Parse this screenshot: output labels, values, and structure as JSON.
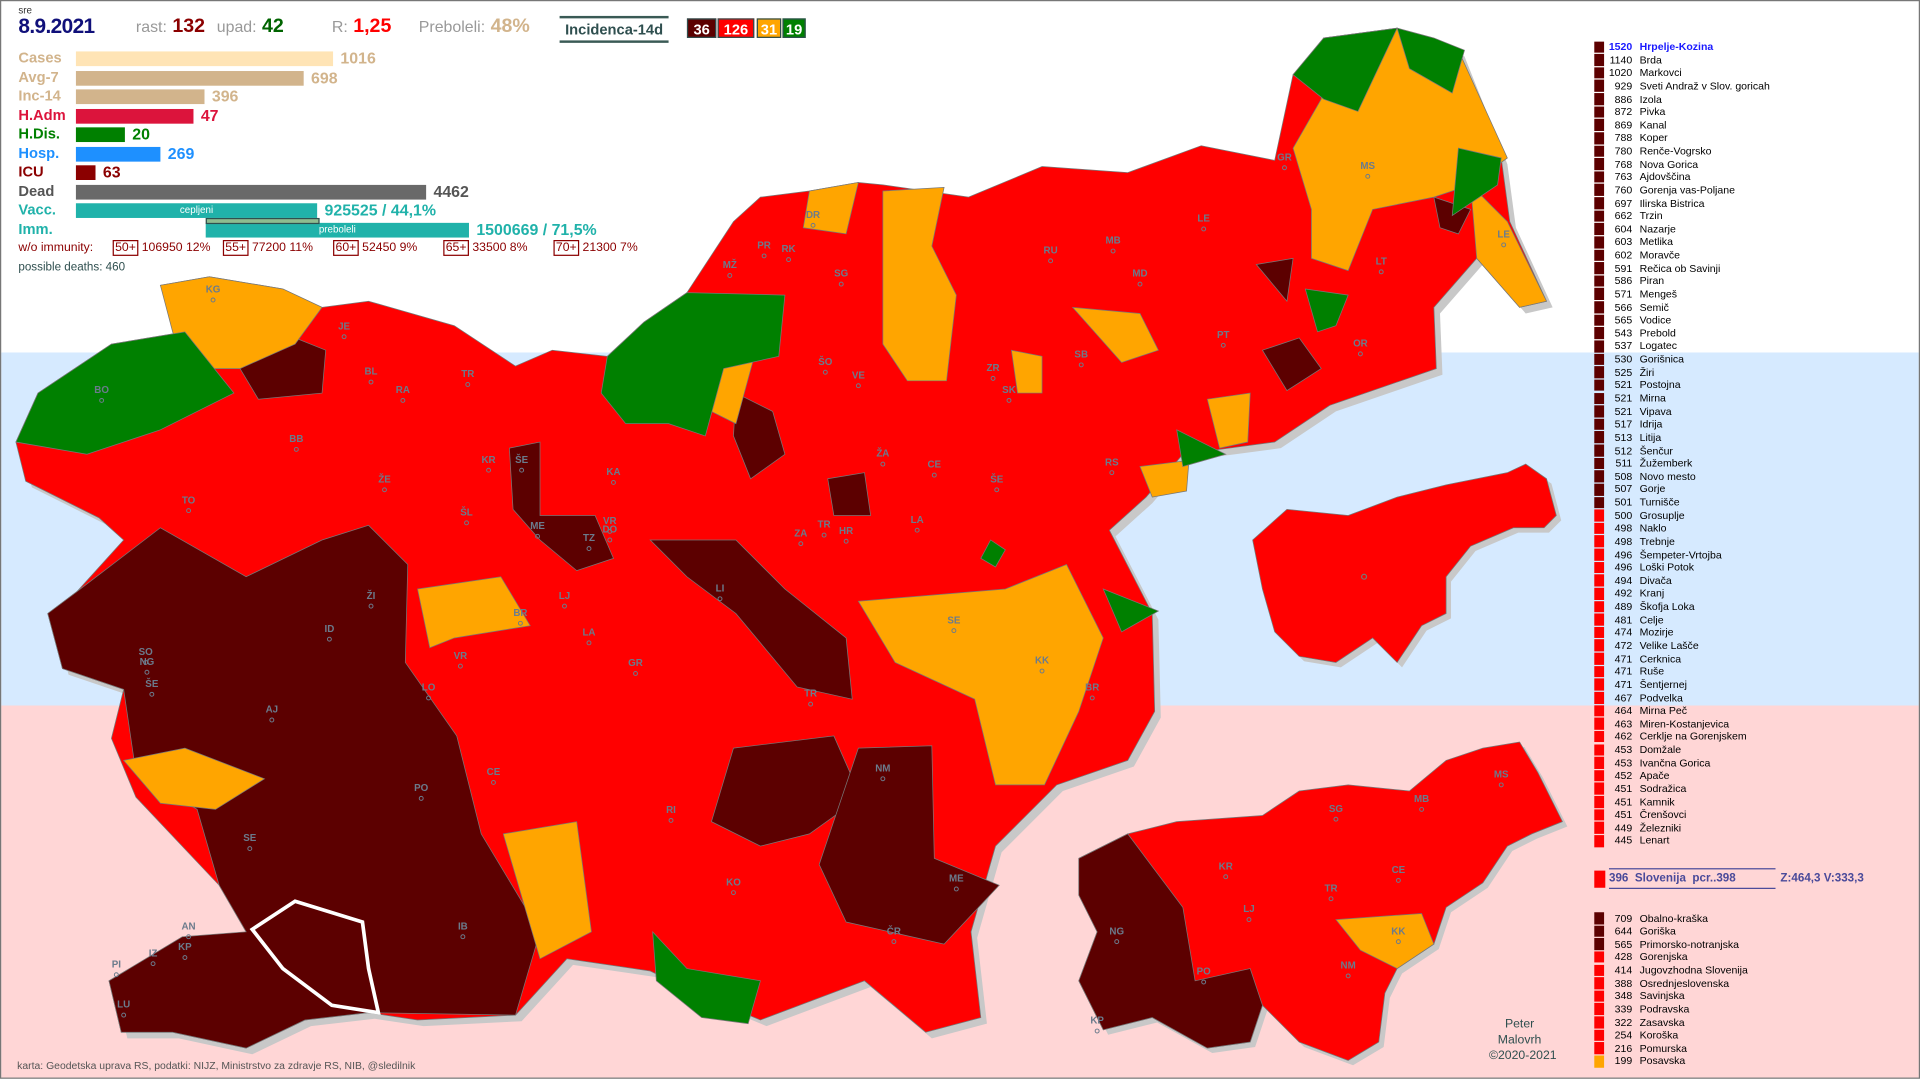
{
  "header": {
    "day": "sre",
    "date": "8.9.2021",
    "rast_label": "rast:",
    "rast": "132",
    "upad_label": "upad:",
    "upad": "42",
    "r_label": "R:",
    "r": "1,25",
    "preboleli_label": "Preboleli:",
    "preboleli": "48%",
    "map_mode": "Incidenca-14d",
    "counts": [
      {
        "value": "36",
        "color": "#5c0000"
      },
      {
        "value": "126",
        "color": "#ff0000"
      },
      {
        "value": "31",
        "color": "#ffa500"
      },
      {
        "value": "19",
        "color": "#008000"
      }
    ]
  },
  "stats": [
    {
      "label": "Cases",
      "value": "1016",
      "color": "#ffe4b5",
      "text_color": "#d2b48c"
    },
    {
      "label": "Avg-7",
      "value": "698",
      "color": "#d2b48c",
      "text_color": "#d2b48c"
    },
    {
      "label": "Inc-14",
      "value": "396",
      "color": "#d2b48c",
      "text_color": "#d2b48c"
    },
    {
      "label": "H.Adm",
      "value": "47",
      "color": "#dc143c",
      "text_color": "#dc143c"
    },
    {
      "label": "H.Dis.",
      "value": "20",
      "color": "#008000",
      "text_color": "#008000"
    },
    {
      "label": "Hosp.",
      "value": "269",
      "color": "#1e90ff",
      "text_color": "#1e90ff"
    },
    {
      "label": "ICU",
      "value": "63",
      "color": "#8b0000",
      "text_color": "#8b0000"
    },
    {
      "label": "Dead",
      "value": "4462",
      "color": "#696969",
      "text_color": "#555555"
    },
    {
      "label": "Vacc.",
      "value": "925525 / 44,1%",
      "color": "#20b2aa",
      "text_color": "#20b2aa",
      "bar_text": "cepljeni"
    },
    {
      "label": "Imm.",
      "value": "1500669 / 71,5%",
      "color": "#20b2aa",
      "text_color": "#20b2aa",
      "bar_text": "preboleli"
    }
  ],
  "immunity": {
    "label": "w/o immunity:",
    "groups": [
      {
        "age": "50+",
        "text": "106950 12%"
      },
      {
        "age": "55+",
        "text": "77200 11%"
      },
      {
        "age": "60+",
        "text": "52450 9%"
      },
      {
        "age": "65+",
        "text": "33500 8%"
      },
      {
        "age": "70+",
        "text": "21300 7%"
      }
    ]
  },
  "possible_deaths": "possible deaths: 460",
  "colors": {
    "very_high": "#5c0000",
    "high": "#ff0000",
    "medium": "#ffa500",
    "low": "#008000",
    "highlight": "#1a1aff"
  },
  "municipalities": [
    [
      "1520",
      "Hrpelje-Kozina",
      "d"
    ],
    [
      "1140",
      "Brda",
      "d"
    ],
    [
      "1020",
      "Markovci",
      "d"
    ],
    [
      "929",
      "Sveti Andraž v Slov. goricah",
      "d"
    ],
    [
      "886",
      "Izola",
      "d"
    ],
    [
      "872",
      "Pivka",
      "d"
    ],
    [
      "869",
      "Kanal",
      "d"
    ],
    [
      "788",
      "Koper",
      "d"
    ],
    [
      "780",
      "Renče-Vogrsko",
      "d"
    ],
    [
      "768",
      "Nova Gorica",
      "d"
    ],
    [
      "763",
      "Ajdovščina",
      "d"
    ],
    [
      "760",
      "Gorenja vas-Poljane",
      "d"
    ],
    [
      "697",
      "Ilirska Bistrica",
      "d"
    ],
    [
      "662",
      "Trzin",
      "d"
    ],
    [
      "604",
      "Nazarje",
      "d"
    ],
    [
      "603",
      "Metlika",
      "d"
    ],
    [
      "602",
      "Moravče",
      "d"
    ],
    [
      "591",
      "Rečica ob Savinji",
      "d"
    ],
    [
      "586",
      "Piran",
      "d"
    ],
    [
      "571",
      "Mengeš",
      "d"
    ],
    [
      "566",
      "Semič",
      "d"
    ],
    [
      "565",
      "Vodice",
      "d"
    ],
    [
      "543",
      "Prebold",
      "d"
    ],
    [
      "537",
      "Logatec",
      "d"
    ],
    [
      "530",
      "Gorišnica",
      "d"
    ],
    [
      "525",
      "Žiri",
      "d"
    ],
    [
      "521",
      "Postojna",
      "d"
    ],
    [
      "521",
      "Mirna",
      "d"
    ],
    [
      "521",
      "Vipava",
      "d"
    ],
    [
      "517",
      "Idrija",
      "d"
    ],
    [
      "513",
      "Litija",
      "d"
    ],
    [
      "512",
      "Šenčur",
      "d"
    ],
    [
      "511",
      "Žužemberk",
      "d"
    ],
    [
      "508",
      "Novo mesto",
      "d"
    ],
    [
      "507",
      "Gorje",
      "d"
    ],
    [
      "501",
      "Turnišče",
      "d"
    ],
    [
      "500",
      "Grosuplje",
      "r"
    ],
    [
      "498",
      "Naklo",
      "r"
    ],
    [
      "498",
      "Trebnje",
      "r"
    ],
    [
      "496",
      "Šempeter-Vrtojba",
      "r"
    ],
    [
      "496",
      "Loški Potok",
      "r"
    ],
    [
      "494",
      "Divača",
      "r"
    ],
    [
      "492",
      "Kranj",
      "r"
    ],
    [
      "489",
      "Škofja Loka",
      "r"
    ],
    [
      "481",
      "Celje",
      "r"
    ],
    [
      "474",
      "Mozirje",
      "r"
    ],
    [
      "472",
      "Velike Lašče",
      "r"
    ],
    [
      "471",
      "Cerknica",
      "r"
    ],
    [
      "471",
      "Ruše",
      "r"
    ],
    [
      "471",
      "Šentjernej",
      "r"
    ],
    [
      "467",
      "Podvelka",
      "r"
    ],
    [
      "464",
      "Mirna Peč",
      "r"
    ],
    [
      "463",
      "Miren-Kostanjevica",
      "r"
    ],
    [
      "462",
      "Cerklje na Gorenjskem",
      "r"
    ],
    [
      "453",
      "Domžale",
      "r"
    ],
    [
      "453",
      "Ivančna Gorica",
      "r"
    ],
    [
      "452",
      "Apače",
      "r"
    ],
    [
      "451",
      "Sodražica",
      "r"
    ],
    [
      "451",
      "Kamnik",
      "r"
    ],
    [
      "451",
      "Črenšovci",
      "r"
    ],
    [
      "449",
      "Železniki",
      "r"
    ],
    [
      "445",
      "Lenart",
      "r"
    ]
  ],
  "national": {
    "value": "396",
    "name": "Slovenija",
    "pcr": "pcr..398",
    "extra": "Z:464,3 V:333,3"
  },
  "regions": [
    [
      "709",
      "Obalno-kraška",
      "d"
    ],
    [
      "644",
      "Goriška",
      "d"
    ],
    [
      "565",
      "Primorsko-notranjska",
      "d"
    ],
    [
      "428",
      "Gorenjska",
      "r"
    ],
    [
      "414",
      "Jugovzhodna Slovenija",
      "r"
    ],
    [
      "388",
      "Osrednjeslovenska",
      "r"
    ],
    [
      "348",
      "Savinjska",
      "r"
    ],
    [
      "339",
      "Podravska",
      "r"
    ],
    [
      "322",
      "Zasavska",
      "r"
    ],
    [
      "254",
      "Koroška",
      "r"
    ],
    [
      "216",
      "Pomurska",
      "r"
    ],
    [
      "199",
      "Posavska",
      "o"
    ]
  ],
  "map": {
    "labels": [
      "KG",
      "JE",
      "BO",
      "BL",
      "RA",
      "TR",
      "BB",
      "TO",
      "ŽE",
      "KR",
      "ŠE",
      "KA",
      "ŠL",
      "ME",
      "TZ",
      "DO",
      "VR",
      "PR",
      "RK",
      "DR",
      "MŽ",
      "SG",
      "ŠO",
      "VE",
      "ZR",
      "SK",
      "SB",
      "RU",
      "MB",
      "MD",
      "LE",
      "GR",
      "MS",
      "LT",
      "LE",
      "PT",
      "OR",
      "RS",
      "ŠE",
      "CE",
      "ŽA",
      "LA",
      "ZA",
      "TR",
      "HR",
      "LI",
      "LJ",
      "LA",
      "BR",
      "ŽI",
      "ID",
      "SO",
      "NG",
      "ŠE",
      "VR",
      "GR",
      "SE",
      "KK",
      "BR",
      "TR",
      "LO",
      "AJ",
      "CE",
      "PO",
      "NM",
      "RI",
      "SE",
      "KO",
      "ME",
      "IB",
      "ČR",
      "AN",
      "KP",
      "IZ",
      "PI",
      "LU"
    ],
    "region_labels": [
      "KR",
      "LJ",
      "TR",
      "CE",
      "SG",
      "MB",
      "MS",
      "NG",
      "KK",
      "NM",
      "PO",
      "KP"
    ]
  },
  "author": [
    "Peter",
    "Malovrh",
    "©2020-2021"
  ],
  "credit": "karta: Geodetska uprava RS,  podatki: NIJZ, Ministrstvo za zdravje RS, NIB, @sledilnik"
}
